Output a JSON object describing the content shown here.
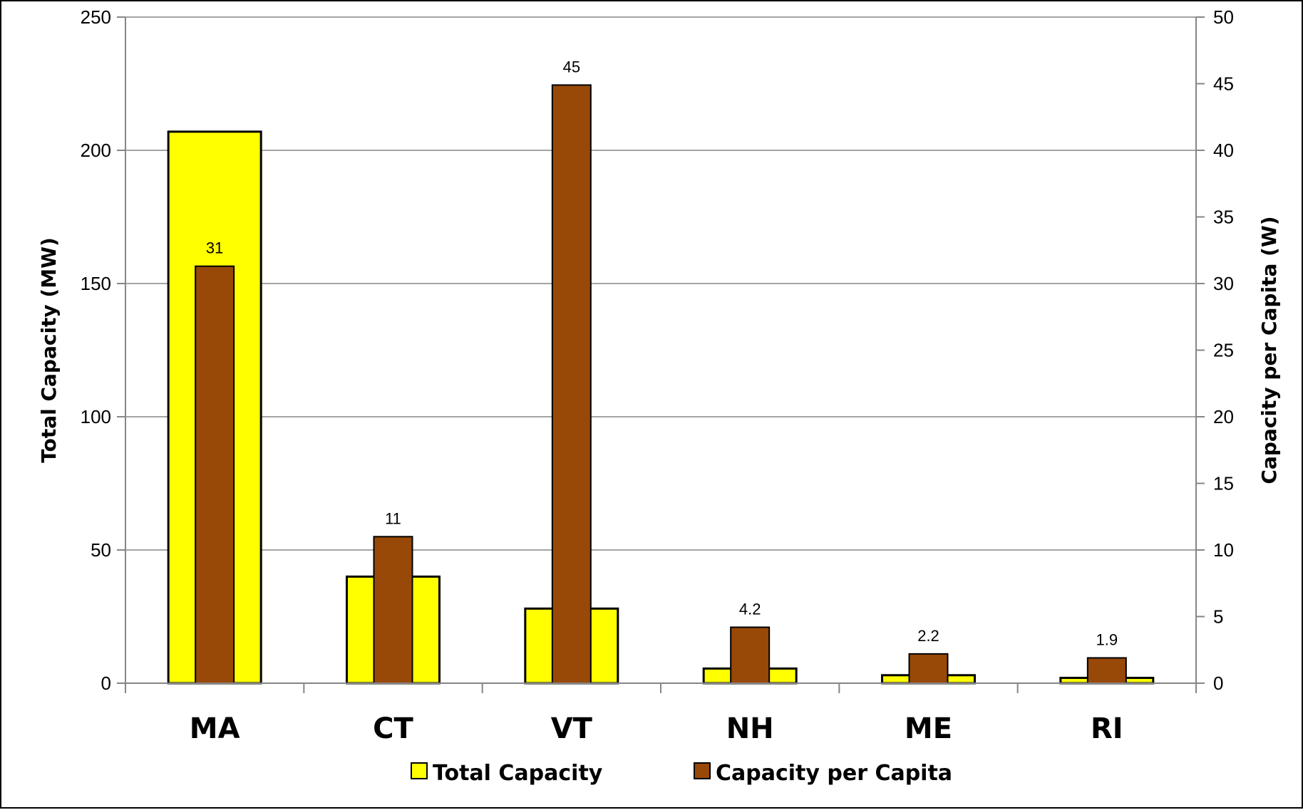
{
  "chart_data": {
    "type": "bar",
    "categories": [
      "MA",
      "CT",
      "VT",
      "NH",
      "ME",
      "RI"
    ],
    "series": [
      {
        "name": "Total Capacity",
        "axis": "left",
        "color": "#FFFF00",
        "values": [
          207,
          40,
          28,
          5.5,
          3,
          2
        ]
      },
      {
        "name": "Capacity per Capita",
        "axis": "right",
        "color": "#984807",
        "values": [
          31.3,
          11,
          44.9,
          4.2,
          2.2,
          1.9
        ],
        "labels": [
          "31",
          "11",
          "45",
          "4.2",
          "2.2",
          "1.9"
        ]
      }
    ],
    "ylabel": "Total Capacity (MW)",
    "y2label": "Capacity per Capita (W)",
    "ylim": [
      0,
      250
    ],
    "y2lim": [
      0,
      50
    ],
    "yticks": [
      "0",
      "50",
      "100",
      "150",
      "200",
      "250"
    ],
    "y2ticks": [
      "0",
      "5",
      "10",
      "15",
      "20",
      "25",
      "30",
      "35",
      "40",
      "45",
      "50"
    ],
    "grid": true,
    "legend": "bottom"
  }
}
